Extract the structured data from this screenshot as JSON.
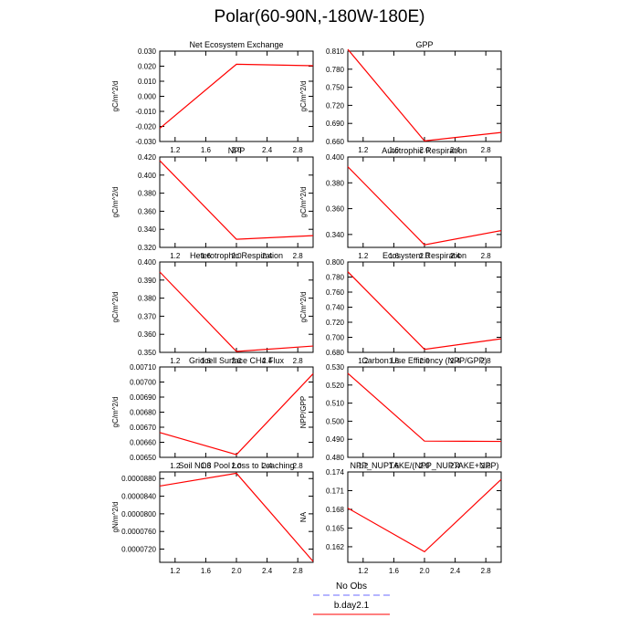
{
  "title": "Polar(60-90N,-180W-180E)",
  "colors": {
    "model_line": "#ff0000",
    "obs_line": "#6b6bff",
    "axis": "#000000"
  },
  "legend": {
    "entries": [
      {
        "label": "No Obs",
        "style": "dashed",
        "color": "#6b6bff"
      },
      {
        "label": "b.day2.1",
        "style": "solid",
        "color": "#ff0000"
      }
    ]
  },
  "chart_data": [
    {
      "type": "line",
      "title": "Net Ecosystem Exchange",
      "ylabel": "gC/m^2/d",
      "xlim": [
        1.0,
        3.0
      ],
      "xticks": [
        "1.2",
        "1.6",
        "2.0",
        "2.4",
        "2.8"
      ],
      "ylim": [
        -0.03,
        0.03
      ],
      "yticks": [
        "-0.030",
        "-0.020",
        "-0.010",
        "0.000",
        "0.010",
        "0.020",
        "0.030"
      ],
      "series": [
        {
          "name": "b.day2.1",
          "x": [
            1.0,
            2.0,
            3.0
          ],
          "y": [
            -0.0213,
            0.0213,
            0.0203
          ]
        }
      ]
    },
    {
      "type": "line",
      "title": "GPP",
      "ylabel": "gC/m^2/d",
      "xlim": [
        1.0,
        3.0
      ],
      "xticks": [
        "1.2",
        "1.6",
        "2.0",
        "2.4",
        "2.8"
      ],
      "ylim": [
        0.66,
        0.81
      ],
      "yticks": [
        "0.660",
        "0.690",
        "0.720",
        "0.750",
        "0.780",
        "0.810"
      ],
      "series": [
        {
          "name": "b.day2.1",
          "x": [
            1.0,
            2.0,
            3.0
          ],
          "y": [
            0.813,
            0.661,
            0.675
          ]
        }
      ]
    },
    {
      "type": "line",
      "title": "NPP",
      "ylabel": "gC/m^2/d",
      "xlim": [
        1.0,
        3.0
      ],
      "xticks": [
        "1.2",
        "1.6",
        "2.0",
        "2.4",
        "2.8"
      ],
      "ylim": [
        0.32,
        0.42
      ],
      "yticks": [
        "0.320",
        "0.340",
        "0.360",
        "0.380",
        "0.400",
        "0.420"
      ],
      "series": [
        {
          "name": "b.day2.1",
          "x": [
            1.0,
            2.0,
            3.0
          ],
          "y": [
            0.416,
            0.329,
            0.333
          ]
        }
      ]
    },
    {
      "type": "line",
      "title": "Autotrophic Respiration",
      "ylabel": "gC/m^2/d",
      "xlim": [
        1.0,
        3.0
      ],
      "xticks": [
        "1.2",
        "1.6",
        "2.0",
        "2.4",
        "2.8"
      ],
      "ylim": [
        0.33,
        0.4
      ],
      "yticks": [
        "0.340",
        "0.360",
        "0.380",
        "0.400"
      ],
      "series": [
        {
          "name": "b.day2.1",
          "x": [
            1.0,
            2.0,
            3.0
          ],
          "y": [
            0.3925,
            0.332,
            0.343
          ]
        }
      ]
    },
    {
      "type": "line",
      "title": "Heterotrophic Respiration",
      "ylabel": "gC/m^2/d",
      "xlim": [
        1.0,
        3.0
      ],
      "xticks": [
        "1.2",
        "1.6",
        "2.0",
        "2.4",
        "2.8"
      ],
      "ylim": [
        0.35,
        0.4
      ],
      "yticks": [
        "0.350",
        "0.360",
        "0.370",
        "0.380",
        "0.390",
        "0.400"
      ],
      "series": [
        {
          "name": "b.day2.1",
          "x": [
            1.0,
            2.0,
            3.0
          ],
          "y": [
            0.3945,
            0.3505,
            0.3535
          ]
        }
      ]
    },
    {
      "type": "line",
      "title": "Ecosystem Respiration",
      "ylabel": "gC/m^2/d",
      "xlim": [
        1.0,
        3.0
      ],
      "xticks": [
        "1.2",
        "1.6",
        "2.0",
        "2.4",
        "2.8"
      ],
      "ylim": [
        0.68,
        0.8
      ],
      "yticks": [
        "0.680",
        "0.700",
        "0.720",
        "0.740",
        "0.760",
        "0.780",
        "0.800"
      ],
      "series": [
        {
          "name": "b.day2.1",
          "x": [
            1.0,
            2.0,
            3.0
          ],
          "y": [
            0.787,
            0.684,
            0.698
          ]
        }
      ]
    },
    {
      "type": "line",
      "title": "Gridcell Surface CH4 Flux",
      "ylabel": "gC/m^2/d",
      "xlim": [
        1.0,
        3.0
      ],
      "xticks": [
        "1.2",
        "1.6",
        "2.0",
        "2.4",
        "2.8"
      ],
      "ylim": [
        0.0065,
        0.0071
      ],
      "yticks": [
        "0.00650",
        "0.00660",
        "0.00670",
        "0.00680",
        "0.00690",
        "0.00700",
        "0.00710"
      ],
      "series": [
        {
          "name": "b.day2.1",
          "x": [
            1.0,
            2.0,
            3.0
          ],
          "y": [
            0.006665,
            0.006518,
            0.007055
          ]
        }
      ]
    },
    {
      "type": "line",
      "title": "Carbon Use Efficiency (NPP/GPP)",
      "ylabel": "NPP/GPP",
      "xlim": [
        1.0,
        3.0
      ],
      "xticks": [
        "1.2",
        "1.6",
        "2.0",
        "2.4",
        "2.8"
      ],
      "ylim": [
        0.48,
        0.53
      ],
      "yticks": [
        "0.480",
        "0.490",
        "0.500",
        "0.510",
        "0.520",
        "0.530"
      ],
      "series": [
        {
          "name": "b.day2.1",
          "x": [
            1.0,
            2.0,
            3.0
          ],
          "y": [
            0.5265,
            0.489,
            0.4888
          ]
        }
      ]
    },
    {
      "type": "line",
      "title": "Soil NO3 Pool Loss to Leaching",
      "ylabel": "gN/m^2/d",
      "xlim": [
        1.0,
        3.0
      ],
      "xticks": [
        "1.2",
        "1.6",
        "2.0",
        "2.4",
        "2.8"
      ],
      "ylim": [
        6.9e-05,
        8.95e-05
      ],
      "yticks": [
        "0.0000720",
        "0.0000760",
        "0.0000800",
        "0.0000840",
        "0.0000880"
      ],
      "series": [
        {
          "name": "b.day2.1",
          "x": [
            1.0,
            2.0,
            3.0
          ],
          "y": [
            8.63e-05,
            8.92e-05,
            6.92e-05
          ]
        }
      ]
    },
    {
      "type": "line",
      "title": "NPP_NUPTAKE/(NPP_NUPTAKE+NPP)",
      "ylabel": "NA",
      "xlim": [
        1.0,
        3.0
      ],
      "xticks": [
        "1.2",
        "1.6",
        "2.0",
        "2.4",
        "2.8"
      ],
      "ylim": [
        0.1595,
        0.174
      ],
      "yticks": [
        "0.162",
        "0.165",
        "0.168",
        "0.171",
        "0.174"
      ],
      "series": [
        {
          "name": "b.day2.1",
          "x": [
            1.0,
            2.0,
            3.0
          ],
          "y": [
            0.1682,
            0.1612,
            0.1728
          ]
        }
      ]
    }
  ]
}
